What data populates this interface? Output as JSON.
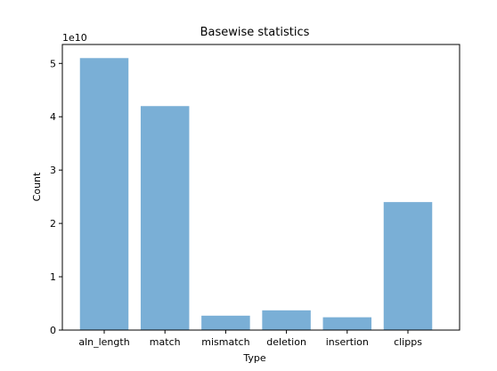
{
  "chart_data": {
    "type": "bar",
    "title": "Basewise statistics",
    "xlabel": "Type",
    "ylabel": "Count",
    "y_multiplier_label": "1e10",
    "categories": [
      "aln_length",
      "match",
      "mismatch",
      "deletion",
      "insertion",
      "clipps"
    ],
    "values": [
      51000000000,
      42000000000,
      2700000000,
      3700000000,
      2400000000,
      24000000000
    ],
    "ylim": [
      0,
      53550000000
    ],
    "yticks": [
      0,
      10000000000,
      20000000000,
      30000000000,
      40000000000,
      50000000000
    ],
    "ytick_labels": [
      "0",
      "1",
      "2",
      "3",
      "4",
      "5"
    ],
    "bar_color": "#7aafd6",
    "grid": false,
    "legend": "none"
  }
}
